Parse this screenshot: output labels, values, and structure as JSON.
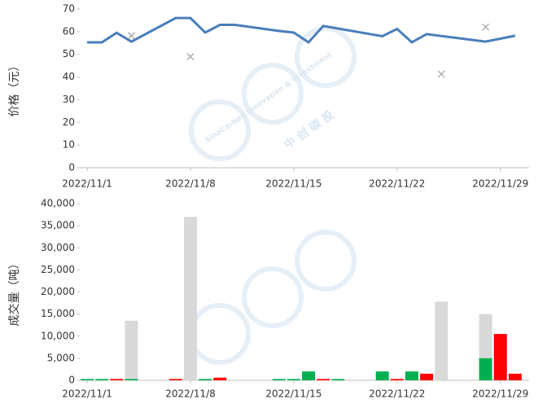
{
  "chart_data": [
    {
      "type": "line",
      "y_label": "价格（元）",
      "x": [
        "2022/11/1",
        "2022/11/2",
        "2022/11/3",
        "2022/11/4",
        "2022/11/7",
        "2022/11/8",
        "2022/11/9",
        "2022/11/10",
        "2022/11/11",
        "2022/11/14",
        "2022/11/15",
        "2022/11/16",
        "2022/11/17",
        "2022/11/21",
        "2022/11/22",
        "2022/11/23",
        "2022/11/24",
        "2022/11/28",
        "2022/11/30"
      ],
      "series": [
        {
          "color": "#4a7ebb",
          "values": [
            55.3,
            55.3,
            59.5,
            55.6,
            66,
            66,
            59.6,
            63,
            63,
            60.3,
            59.6,
            55.3,
            62.5,
            58,
            61.2,
            55.3,
            58.9,
            55.6,
            58.2
          ]
        }
      ],
      "markers": {
        "color": "#a6a6a6",
        "x": [
          "2022/11/4",
          "2022/11/8",
          "2022/11/25",
          "2022/11/28"
        ],
        "values": [
          58.2,
          49,
          41.3,
          62
        ]
      },
      "xlim": [
        "2022/11/1",
        "2022/11/30"
      ],
      "xticks": [
        "2022/11/1",
        "2022/11/8",
        "2022/11/15",
        "2022/11/22",
        "2022/11/29"
      ],
      "ylim": [
        0,
        70
      ],
      "yticks": [
        0,
        10,
        20,
        30,
        40,
        50,
        60,
        70
      ]
    },
    {
      "type": "bar",
      "y_label": "成交量（吨）",
      "x": [
        "2022/11/1",
        "2022/11/2",
        "2022/11/3",
        "2022/11/4",
        "2022/11/7",
        "2022/11/8",
        "2022/11/9",
        "2022/11/10",
        "2022/11/14",
        "2022/11/15",
        "2022/11/16",
        "2022/11/17",
        "2022/11/18",
        "2022/11/21",
        "2022/11/22",
        "2022/11/23",
        "2022/11/24",
        "2022/11/25",
        "2022/11/28",
        "2022/11/29",
        "2022/11/30"
      ],
      "series": [
        {
          "color": "#d9d9d9",
          "values": [
            null,
            null,
            null,
            13500,
            null,
            37000,
            null,
            null,
            null,
            null,
            null,
            null,
            null,
            null,
            null,
            null,
            null,
            17800,
            15000,
            null,
            null
          ]
        },
        {
          "color": "#00b050",
          "values": [
            300,
            300,
            null,
            300,
            null,
            null,
            300,
            null,
            300,
            300,
            2000,
            null,
            300,
            2000,
            null,
            2000,
            null,
            null,
            5000,
            null,
            null
          ]
        },
        {
          "color": "#ff0000",
          "values": [
            null,
            null,
            300,
            null,
            300,
            null,
            null,
            600,
            null,
            null,
            null,
            300,
            null,
            null,
            300,
            null,
            1500,
            null,
            null,
            10500,
            1500
          ]
        }
      ],
      "xlim": [
        "2022/11/1",
        "2022/11/30"
      ],
      "xticks": [
        "2022/11/1",
        "2022/11/8",
        "2022/11/15",
        "2022/11/22",
        "2022/11/29"
      ],
      "ylim": [
        0,
        40000
      ],
      "yticks": [
        0,
        {
          "value": 5000,
          "label": "5,000"
        },
        {
          "value": 10000,
          "label": "10,000"
        },
        {
          "value": 15000,
          "label": "15,000"
        },
        {
          "value": 20000,
          "label": "20,000"
        },
        {
          "value": 25000,
          "label": "25,000"
        },
        {
          "value": 30000,
          "label": "30,000"
        },
        {
          "value": 35000,
          "label": "35,000"
        },
        {
          "value": 40000,
          "label": "40,000"
        }
      ]
    }
  ],
  "watermark": {
    "brand": "SinoCarbon Innovation & Investment",
    "name": "中 创 碳 投"
  }
}
